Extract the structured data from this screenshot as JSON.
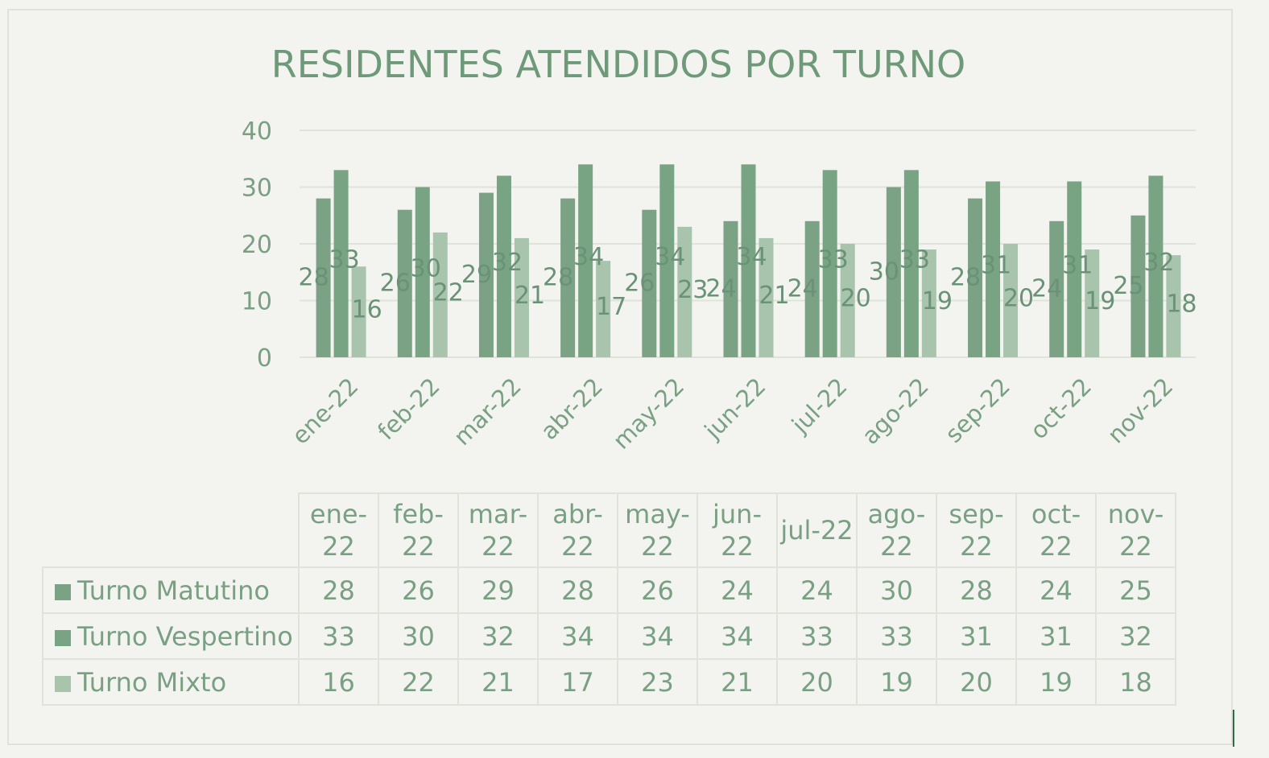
{
  "chart_data": {
    "type": "bar",
    "title": "RESIDENTES ATENDIDOS POR TURNO",
    "categories": [
      "ene-22",
      "feb-22",
      "mar-22",
      "abr-22",
      "may-22",
      "jun-22",
      "jul-22",
      "ago-22",
      "sep-22",
      "oct-22",
      "nov-22"
    ],
    "table_headers": [
      "ene-\n22",
      "feb-\n22",
      "mar-\n22",
      "abr-\n22",
      "may-\n22",
      "jun-\n22",
      "jul-22",
      "ago-\n22",
      "sep-\n22",
      "oct-\n22",
      "nov-\n22"
    ],
    "series": [
      {
        "name": "Turno Matutino",
        "color": "#7ca286",
        "values": [
          28,
          26,
          29,
          28,
          26,
          24,
          24,
          30,
          28,
          24,
          25
        ]
      },
      {
        "name": "Turno Vespertino",
        "color": "#78a483",
        "values": [
          33,
          30,
          32,
          34,
          34,
          34,
          33,
          33,
          31,
          31,
          32
        ]
      },
      {
        "name": "Turno Mixto",
        "color": "#a8c4ad",
        "values": [
          16,
          22,
          21,
          17,
          23,
          21,
          20,
          19,
          20,
          19,
          18
        ]
      }
    ],
    "yticks": [
      0,
      10,
      20,
      30,
      40
    ],
    "ylim": [
      0,
      40
    ],
    "grid": true,
    "legend": "data table below chart"
  }
}
